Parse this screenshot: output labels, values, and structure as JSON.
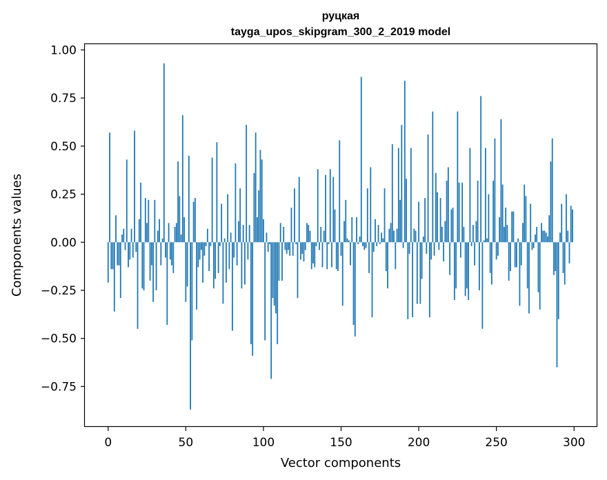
{
  "chart_data": {
    "type": "bar",
    "title": "руцкая",
    "subtitle": "tayga_upos_skipgram_300_2_2019 model",
    "xlabel": "Vector components",
    "ylabel": "Components values",
    "xlim": [
      -15,
      315
    ],
    "ylim": [
      -0.96,
      1.03
    ],
    "xticks": [
      0,
      50,
      100,
      150,
      200,
      250,
      300
    ],
    "yticks": [
      -0.75,
      -0.5,
      -0.25,
      0.0,
      0.25,
      0.5,
      0.75,
      1.0
    ],
    "ytick_labels": [
      "−0.75",
      "−0.50",
      "−0.25",
      "0.00",
      "0.25",
      "0.50",
      "0.75",
      "1.00"
    ],
    "grid": false,
    "color": "#1f77b4",
    "x": "0..299 (component index)",
    "values": [
      -0.21,
      0.57,
      -0.14,
      -0.14,
      -0.36,
      0.14,
      -0.12,
      -0.12,
      -0.29,
      0.04,
      0.07,
      -0.04,
      0.43,
      -0.13,
      -0.09,
      0.07,
      -0.08,
      0.58,
      -0.05,
      -0.45,
      0.12,
      0.31,
      -0.24,
      -0.25,
      0.23,
      0.1,
      0.22,
      -0.2,
      -0.12,
      -0.31,
      0.22,
      -0.25,
      0.06,
      0.12,
      -0.12,
      0.02,
      0.93,
      -0.08,
      -0.43,
      0.1,
      -0.09,
      -0.12,
      -0.16,
      0.08,
      0.1,
      0.42,
      0.24,
      0.04,
      0.66,
      0.13,
      -0.31,
      -0.23,
      0.45,
      -0.87,
      -0.51,
      0.21,
      0.23,
      -0.35,
      -0.13,
      -0.09,
      -0.04,
      -0.21,
      -0.07,
      -0.02,
      0.07,
      -0.15,
      -0.02,
      0.44,
      -0.24,
      -0.19,
      0.52,
      -0.16,
      -0.02,
      0.2,
      -0.32,
      0.02,
      -0.21,
      0.25,
      -0.14,
      0.05,
      -0.46,
      -0.08,
      0.41,
      -0.12,
      0.11,
      0.28,
      -0.24,
      0.09,
      -0.22,
      0.61,
      -0.09,
      0.09,
      -0.53,
      -0.59,
      0.36,
      0.57,
      0.13,
      0.27,
      0.48,
      0.43,
      0.12,
      -0.51,
      0.05,
      -0.05,
      -0.01,
      -0.71,
      -0.29,
      -0.33,
      -0.37,
      -0.53,
      -0.2,
      0.1,
      -0.2,
      0.08,
      -0.04,
      -0.06,
      -0.04,
      -0.07,
      0.18,
      -0.07,
      0.28,
      -0.01,
      -0.29,
      0.34,
      -0.09,
      -0.06,
      -0.1,
      -0.04,
      0.1,
      0.09,
      0.06,
      -0.14,
      -0.11,
      -0.13,
      -0.02,
      0.38,
      -0.04,
      0.08,
      -0.13,
      0.06,
      0.35,
      -0.14,
      -0.01,
      0.38,
      -0.13,
      0.34,
      0.17,
      -0.14,
      -0.15,
      0.53,
      -0.07,
      -0.33,
      0.11,
      0.22,
      0.02,
      0.01,
      -0.12,
      0.13,
      -0.43,
      -0.49,
      0.13,
      -0.01,
      0.03,
      0.86,
      -0.02,
      -0.04,
      -0.03,
      0.28,
      -0.16,
      0.39,
      -0.39,
      -0.05,
      0.12,
      -0.02,
      0.09,
      -0.01,
      0.05,
      0.02,
      0.28,
      -0.15,
      -0.24,
      0.07,
      0.1,
      0.51,
      0.06,
      -0.14,
      0.07,
      0.49,
      0.22,
      0.61,
      -0.03,
      0.84,
      0.33,
      -0.4,
      -0.06,
      0.49,
      -0.39,
      0.07,
      0.06,
      -0.32,
      0.21,
      -0.32,
      -0.19,
      0.03,
      0.23,
      -0.06,
      0.56,
      -0.39,
      -0.09,
      0.68,
      -0.07,
      0.36,
      0.26,
      -0.04,
      0.23,
      0.08,
      -0.1,
      0.11,
      0.32,
      0.39,
      -0.17,
      0.17,
      0.18,
      -0.3,
      -0.24,
      0.68,
      0.31,
      -0.08,
      0.31,
      0.08,
      -0.28,
      -0.24,
      -0.3,
      0.49,
      -0.02,
      0.09,
      -0.12,
      0.11,
      0.32,
      -0.25,
      0.76,
      -0.45,
      0.01,
      0.49,
      0.02,
      0.25,
      -0.16,
      -0.22,
      0.32,
      0.54,
      -0.09,
      -0.07,
      0.13,
      0.64,
      0.3,
      0.08,
      0.18,
      0.09,
      -0.2,
      -0.15,
      0.16,
      0.16,
      -0.13,
      -0.13,
      0.02,
      -0.33,
      -0.12,
      0.1,
      0.3,
      0.24,
      -0.24,
      -0.37,
      0.2,
      -0.04,
      -0.03,
      0.04,
      0.08,
      -0.26,
      -0.35,
      0.1,
      0.06,
      0.06,
      0.05,
      0.03,
      0.14,
      0.42,
      0.54,
      -0.17,
      -0.15,
      -0.65,
      -0.4,
      0.05,
      0.2,
      -0.16,
      -0.22,
      0.25,
      0.06,
      -0.11,
      0.19,
      0.17
    ]
  }
}
